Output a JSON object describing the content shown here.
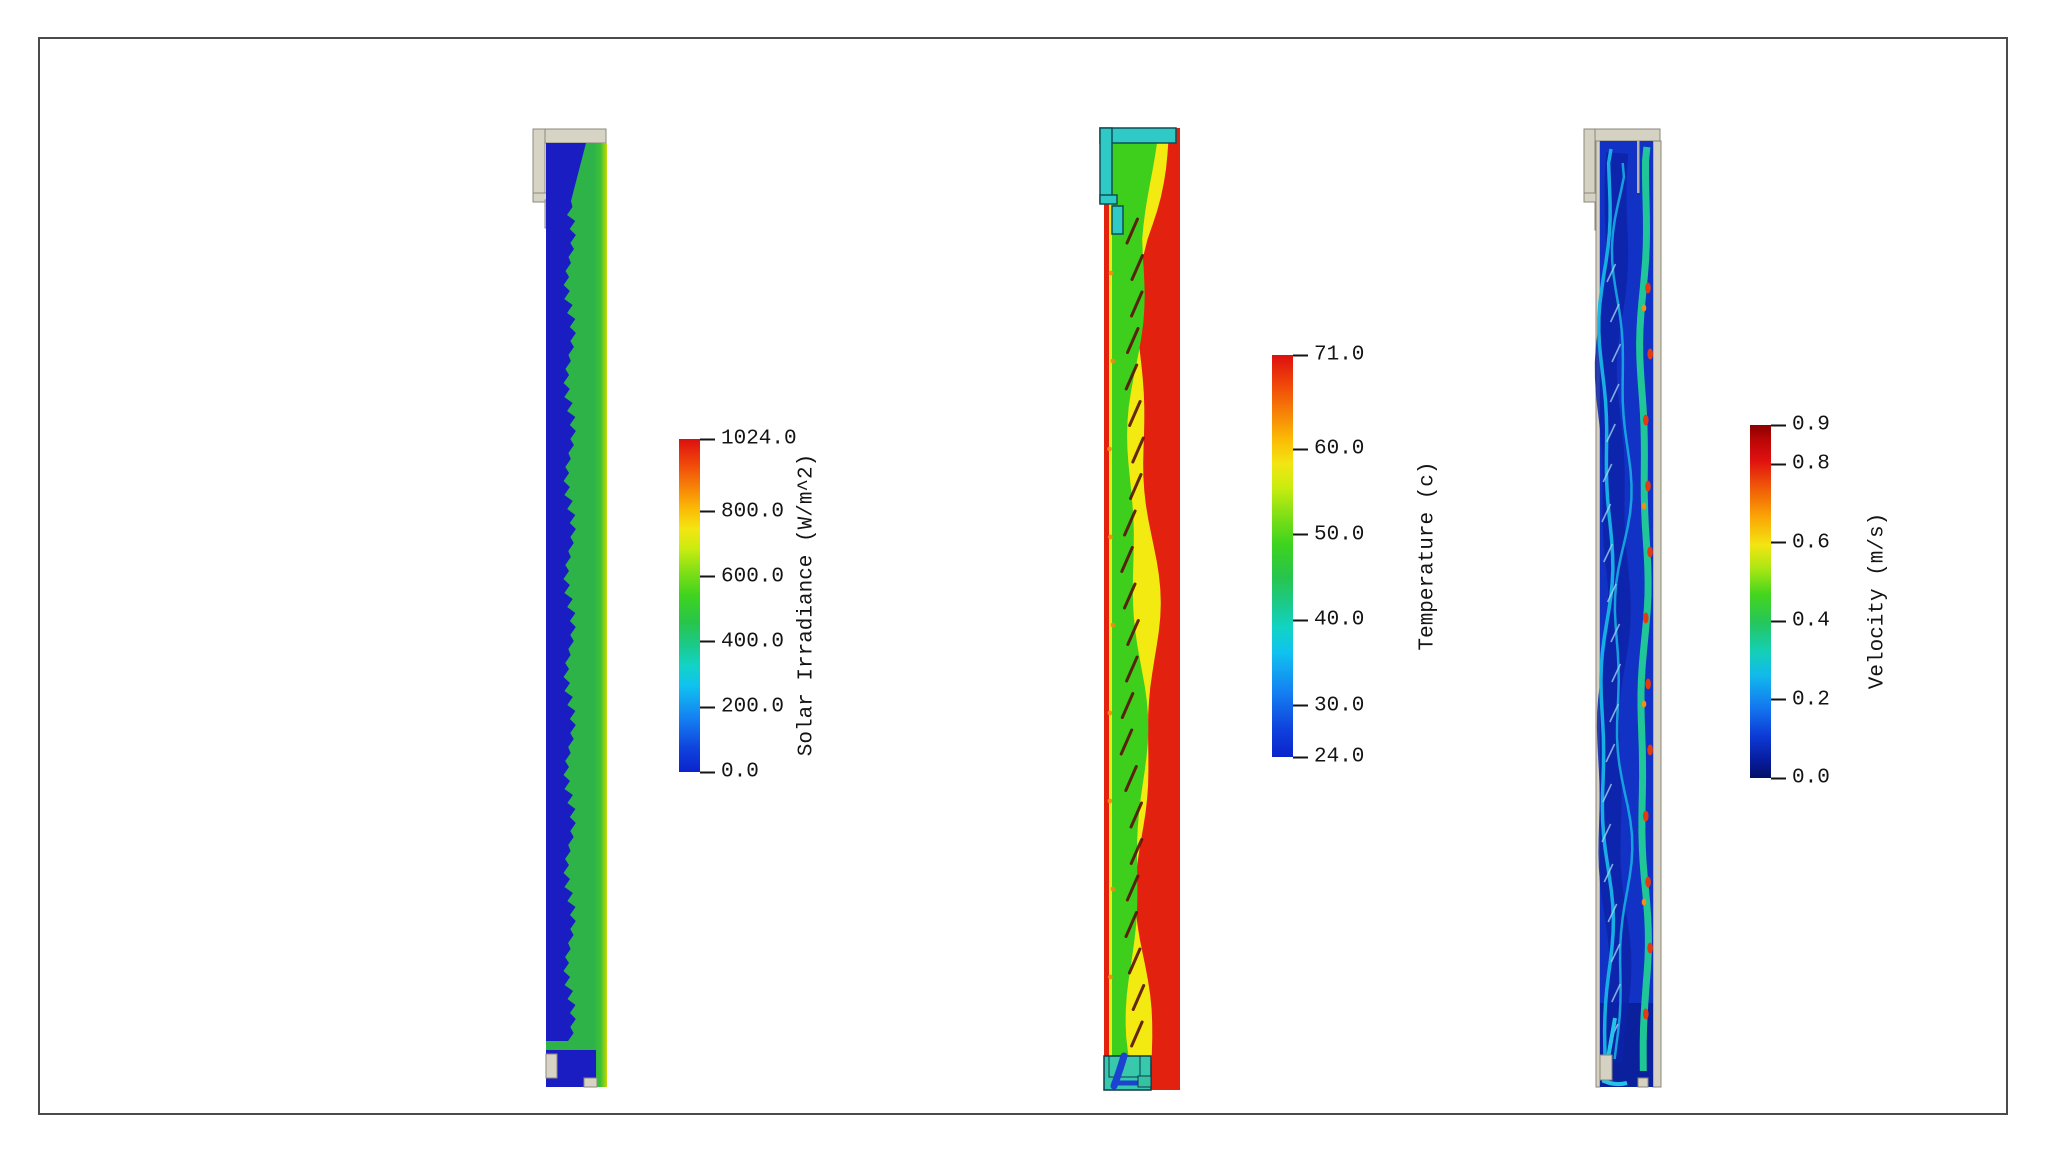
{
  "figure": {
    "background_color": "#ffffff",
    "frame_border_color": "#4b4b4b",
    "description": "Three vertical CFD contour slices of a solar air-heater channel with rainbow (jet) colorbar legends"
  },
  "panels": [
    {
      "name": "solar-irradiance-contour",
      "summary": "Grey inlet structure at top; channel split between dark-blue shaded cavity (0 W/m^2) and green absorber side (~600 W/m^2) with jagged interface and yellow-green cover edge; grey outlet blocks at bottom"
    },
    {
      "name": "temperature-contour",
      "summary": "Cyan inlet duct (~30 c) at top; red hot walls (~71 c) flanking a wavy green core flow (~50 c) with yellow transition and dark inclined absorber fins; teal outlet box with blue streak at bottom"
    },
    {
      "name": "velocity-contour",
      "summary": "Grey duct walls; dark-blue slow core (~0-0.1 m/s) with cyan/teal streaks (~0.2-0.4 m/s), faint fin outlines, red high-speed spots (~0.8 m/s) near the right wall; curved cyan outlet jet at bottom"
    }
  ],
  "chart_data": [
    {
      "type": "heatmap",
      "title": "Solar Irradiance (W/m^2)",
      "quantity": "Solar Irradiance",
      "units": "W/m^2",
      "colormap": "jet",
      "range": [
        0.0,
        1024.0
      ],
      "legend_orientation": "vertical",
      "legend_ticks": [
        {
          "label": "1024.0",
          "value": 1024.0
        },
        {
          "label": "800.0",
          "value": 800.0
        },
        {
          "label": "600.0",
          "value": 600.0
        },
        {
          "label": "400.0",
          "value": 400.0
        },
        {
          "label": "200.0",
          "value": 200.0
        },
        {
          "label": "0.0",
          "value": 0.0
        }
      ],
      "regions": [
        {
          "name": "absorber-side",
          "approx_value": 600,
          "color": "green"
        },
        {
          "name": "cover-edge",
          "approx_value": 780,
          "color": "yellow-green"
        },
        {
          "name": "shaded-cavity",
          "approx_value": 0,
          "color": "dark blue"
        }
      ]
    },
    {
      "type": "heatmap",
      "title": "Temperature (c)",
      "quantity": "Temperature",
      "units": "c",
      "colormap": "jet",
      "range": [
        24.0,
        71.0
      ],
      "legend_orientation": "vertical",
      "legend_ticks": [
        {
          "label": "71.0",
          "value": 71.0
        },
        {
          "label": "60.0",
          "value": 60.0
        },
        {
          "label": "50.0",
          "value": 50.0
        },
        {
          "label": "40.0",
          "value": 40.0
        },
        {
          "label": "30.0",
          "value": 30.0
        },
        {
          "label": "24.0",
          "value": 24.0
        }
      ],
      "regions": [
        {
          "name": "wall-boundary-layers",
          "approx_value": 71,
          "color": "red"
        },
        {
          "name": "transition-layer",
          "approx_value": 60,
          "color": "yellow"
        },
        {
          "name": "core-flow",
          "approx_value": 50,
          "color": "green"
        },
        {
          "name": "inlet-duct",
          "approx_value": 30,
          "color": "cyan"
        },
        {
          "name": "outlet-box",
          "approx_value": 40,
          "color": "teal"
        }
      ]
    },
    {
      "type": "heatmap",
      "title": "Velocity (m/s)",
      "quantity": "Velocity",
      "units": "m/s",
      "colormap": "jet",
      "range": [
        0.0,
        0.9
      ],
      "legend_orientation": "vertical",
      "legend_ticks": [
        {
          "label": "0.9",
          "value": 0.9
        },
        {
          "label": "0.8",
          "value": 0.8
        },
        {
          "label": "0.6",
          "value": 0.6
        },
        {
          "label": "0.4",
          "value": 0.4
        },
        {
          "label": "0.2",
          "value": 0.2
        },
        {
          "label": "0.0",
          "value": 0.0
        }
      ],
      "regions": [
        {
          "name": "near-wall-slow-core",
          "approx_value": 0.05,
          "color": "dark blue"
        },
        {
          "name": "mid-channel-streams",
          "approx_value": 0.3,
          "color": "cyan-teal"
        },
        {
          "name": "right-wall-jets",
          "approx_value": 0.8,
          "color": "red"
        },
        {
          "name": "outlet-jet",
          "approx_value": 0.35,
          "color": "cyan"
        }
      ]
    }
  ]
}
